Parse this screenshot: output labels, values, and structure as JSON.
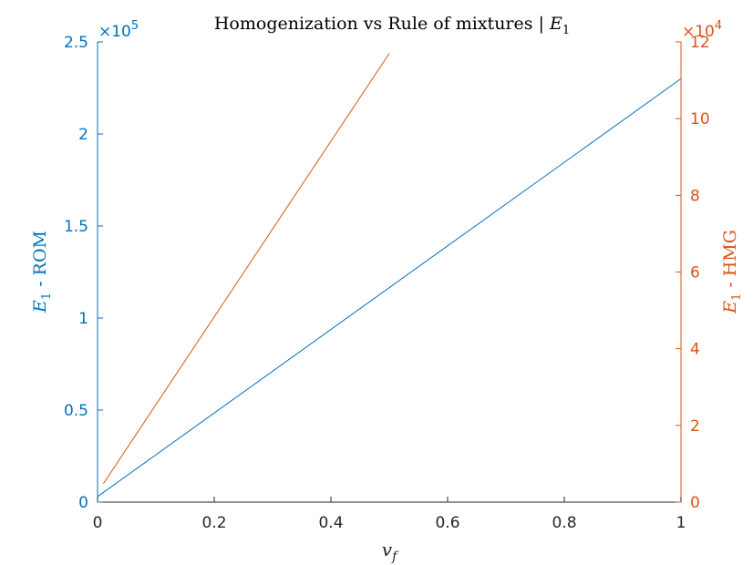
{
  "chart_data": {
    "type": "line",
    "title_prefix": "Homogenization vs Rule of mixtures | ",
    "title_var": "E",
    "title_sub": "1",
    "xlabel": {
      "var": "v",
      "sub": "f"
    },
    "left_ylabel": {
      "var": "E",
      "sub": "1",
      "text": " - ROM"
    },
    "right_ylabel": {
      "var": "E",
      "sub": "1",
      "text": " - HMG"
    },
    "left_exponent": {
      "times": "×10",
      "power": "5"
    },
    "right_exponent": {
      "times": "×10",
      "power": "4"
    },
    "xlim": [
      0,
      1
    ],
    "left_ylim": [
      0,
      250000
    ],
    "right_ylim": [
      0,
      120000
    ],
    "x_ticks": [
      0,
      0.2,
      0.4,
      0.6,
      0.8,
      1
    ],
    "x_tick_labels": [
      "0",
      "0.2",
      "0.4",
      "0.6",
      "0.8",
      "1"
    ],
    "left_ticks": [
      0,
      50000,
      100000,
      150000,
      200000,
      250000
    ],
    "left_tick_labels": [
      "0",
      "0.5",
      "1",
      "1.5",
      "2",
      "2.5"
    ],
    "right_ticks": [
      0,
      20000,
      40000,
      60000,
      80000,
      100000,
      120000
    ],
    "right_tick_labels": [
      "0",
      "2",
      "4",
      "6",
      "8",
      "10",
      "12"
    ],
    "colors": {
      "left": "#0072BD",
      "right": "#D95319",
      "axis": "#262626"
    },
    "series": [
      {
        "axis": "left",
        "x": [
          0.0,
          1.0
        ],
        "y": [
          3000,
          230000
        ]
      },
      {
        "axis": "right",
        "x": [
          0.01,
          0.5
        ],
        "y": [
          4800,
          117000
        ]
      }
    ]
  }
}
